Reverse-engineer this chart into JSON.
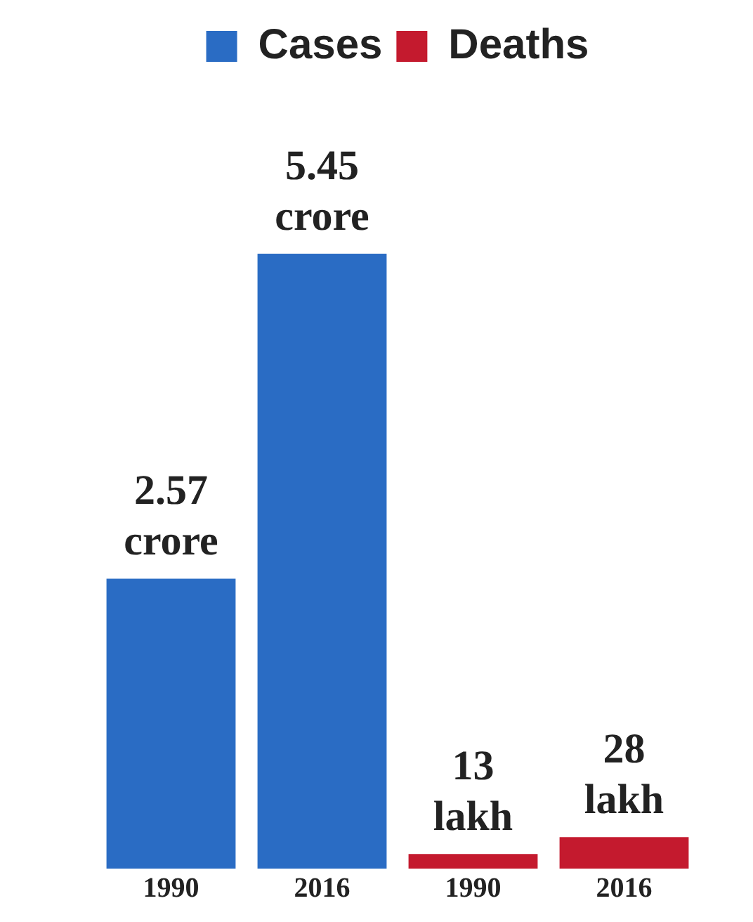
{
  "chart_data": {
    "type": "bar",
    "categories": [
      "1990",
      "2016",
      "1990",
      "2016"
    ],
    "series": [
      {
        "name": "Cases",
        "color": "#2a6cc4",
        "values": [
          2.57,
          5.45,
          null,
          null
        ],
        "value_labels": [
          "2.57 crore",
          "5.45 crore",
          null,
          null
        ]
      },
      {
        "name": "Deaths",
        "color": "#c41a2e",
        "axis": "y2",
        "values": [
          null,
          null,
          13,
          28
        ],
        "value_labels": [
          null,
          null,
          "13 lakh",
          "28 lakh"
        ]
      }
    ],
    "legend": "top",
    "grid": false
  }
}
